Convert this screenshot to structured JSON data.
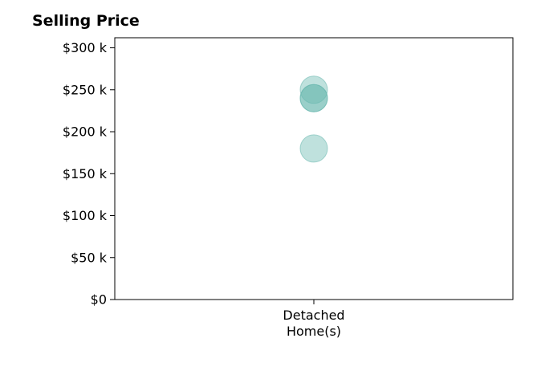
{
  "chart_data": {
    "type": "scatter",
    "title": "Selling Price",
    "categories": [
      "Detached\nHome(s)"
    ],
    "y_ticks": [
      {
        "value": 0,
        "label": "$0"
      },
      {
        "value": 50000,
        "label": "$50 k"
      },
      {
        "value": 100000,
        "label": "$100 k"
      },
      {
        "value": 150000,
        "label": "$150 k"
      },
      {
        "value": 200000,
        "label": "$200 k"
      },
      {
        "value": 250000,
        "label": "$250 k"
      },
      {
        "value": 300000,
        "label": "$300 k"
      }
    ],
    "ylim": [
      0,
      312000
    ],
    "grid": false,
    "points": [
      {
        "category": "Detached\nHome(s)",
        "y": 250000
      },
      {
        "category": "Detached\nHome(s)",
        "y": 240000
      },
      {
        "category": "Detached\nHome(s)",
        "y": 240000
      },
      {
        "category": "Detached\nHome(s)",
        "y": 180000
      }
    ],
    "marker_color": "#66b7ad"
  }
}
